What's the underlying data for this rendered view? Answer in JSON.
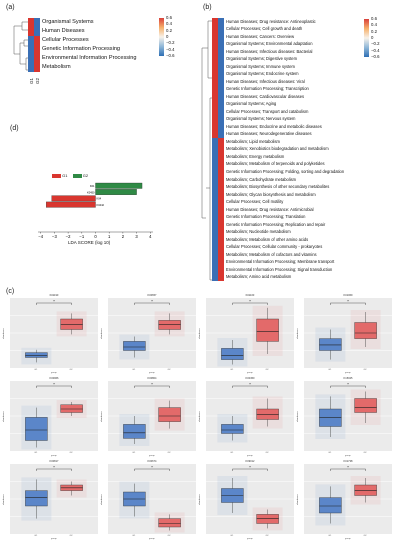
{
  "panels": {
    "a": "(a)",
    "b": "(b)",
    "c": "(c)",
    "d": "(d)"
  },
  "colorbar_ticks": [
    "0.6",
    "0.4",
    "0.2",
    "0",
    "−0.2",
    "−0.4",
    "−0.6"
  ],
  "colors": {
    "red": "#d9362f",
    "blue": "#3a6fb5",
    "green": "#2f8a45",
    "panel_bg": "#ebebeb",
    "box_blue": "#5b86c9",
    "box_red": "#e36a6a"
  },
  "chart_data": [
    {
      "type": "heatmap",
      "panel": "a",
      "columns": [
        "G1",
        "G2"
      ],
      "rows": [
        "Organismal Systems",
        "Human Diseases",
        "Cellular Processes",
        "Genetic Information Processing",
        "Environmental Information Processing",
        "Metabolism"
      ],
      "values": [
        [
          0.6,
          -0.6
        ],
        [
          0.6,
          -0.6
        ],
        [
          -0.6,
          0.6
        ],
        [
          -0.6,
          0.6
        ],
        [
          -0.6,
          0.6
        ],
        [
          -0.6,
          0.6
        ]
      ]
    },
    {
      "type": "heatmap",
      "panel": "b",
      "columns": [
        "G1",
        "G2"
      ],
      "rows": [
        "Human Diseases; Drug resistance: Antineoplastic",
        "Cellular Processes; Cell growth and death",
        "Human Diseases; Cancers: Overview",
        "Organismal Systems; Environmental adaptation",
        "Human Diseases; Infectious diseases: Bacterial",
        "Organismal Systems; Digestive system",
        "Organismal Systems; Immune system",
        "Organismal Systems; Endocrine system",
        "Human Diseases; Infectious diseases: Viral",
        "Genetic Information Processing; Transcription",
        "Human Diseases; Cardiovascular diseases",
        "Organismal Systems; Aging",
        "Cellular Processes; Transport and catabolism",
        "Organismal Systems; Nervous system",
        "Human Diseases; Endocrine and metabolic diseases",
        "Human Diseases; Neurodegenerative diseases",
        "Metabolism; Lipid metabolism",
        "Metabolism; Xenobiotics biodegradation and metabolism",
        "Metabolism; Energy metabolism",
        "Metabolism; Metabolism of terpenoids and polyketides",
        "Genetic Information Processing; Folding, sorting and degradation",
        "Metabolism; Carbohydrate metabolism",
        "Metabolism; Biosynthesis of other secondary metabolites",
        "Metabolism; Glycan biosynthesis and metabolism",
        "Cellular Processes; Cell motility",
        "Human Diseases; Drug resistance: Antimicrobial",
        "Genetic Information Processing; Translation",
        "Genetic Information Processing; Replication and repair",
        "Metabolism; Nucleotide metabolism",
        "Metabolism; Metabolism of other amino acids",
        "Cellular Processes; Cellular community - prokaryotes",
        "Metabolism; Metabolism of cofactors and vitamins",
        "Environmental Information Processing; Membrane transport",
        "Environmental Information Processing; Signal transduction",
        "Metabolism; Amino acid metabolism"
      ],
      "values_note_G1_high_rows": 16
    },
    {
      "type": "bar",
      "panel": "d",
      "legend": [
        "G1",
        "G2"
      ],
      "xlabel": "LDA SCORE (log 10)",
      "xticks": [
        -4,
        -3,
        -2,
        -1,
        0,
        1,
        2,
        3,
        4
      ],
      "xlim": [
        -4.2,
        4.2
      ],
      "categories": [
        "K01",
        "K0450",
        "K04",
        "K0442"
      ],
      "values": [
        3.4,
        3.0,
        -3.2,
        -3.6
      ],
      "groups": [
        "G2",
        "G2",
        "G1",
        "G1"
      ]
    },
    {
      "type": "box",
      "panel": "c",
      "xlabel": "group",
      "ylabel": "abundance",
      "groups": [
        "G1",
        "G2"
      ],
      "significance": "*",
      "plots": [
        {
          "title": "K01190"
        },
        {
          "title": "K00657"
        },
        {
          "title": "K01163"
        },
        {
          "title": "K01069"
        },
        {
          "title": "K00966"
        },
        {
          "title": "K00804"
        },
        {
          "title": "K00450"
        },
        {
          "title": "K15025"
        },
        {
          "title": "K00817"
        },
        {
          "title": "K00674"
        },
        {
          "title": "K09012"
        },
        {
          "title": "K01738"
        }
      ]
    }
  ]
}
